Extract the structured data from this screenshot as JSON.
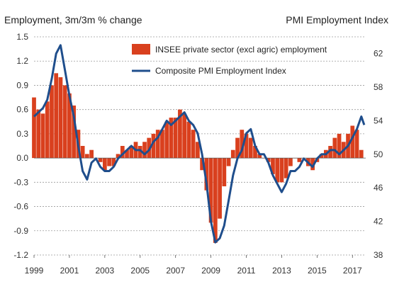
{
  "chart_data": {
    "type": "bar+line",
    "left_axis_title": "Employment, 3m/3m % change",
    "right_axis_title": "PMI Employment Index",
    "left_ylim": [
      -1.2,
      1.5
    ],
    "left_ticks": [
      "1.5",
      "1.2",
      "0.9",
      "0.6",
      "0.3",
      "0.0",
      "-0.3",
      "-0.6",
      "-0.9",
      "-1.2"
    ],
    "right_ylim": [
      38,
      64
    ],
    "right_ticks": [
      "62",
      "58",
      "54",
      "50",
      "46",
      "42",
      "38"
    ],
    "x_ticks": [
      "1999",
      "2001",
      "2003",
      "2005",
      "2007",
      "2009",
      "2011",
      "2013",
      "2015",
      "2017"
    ],
    "grid": "horizontal dashed",
    "legend_placement": "top-center",
    "colors": {
      "bars": "#d9401e",
      "line": "#1f4e8c"
    },
    "series": [
      {
        "name": "INSEE private sector (excl agric) employment",
        "kind": "bar",
        "axis": "left",
        "points": [
          [
            "1999-01",
            0.75
          ],
          [
            "1999-04",
            0.6
          ],
          [
            "1999-07",
            0.55
          ],
          [
            "1999-10",
            0.7
          ],
          [
            "2000-01",
            0.9
          ],
          [
            "2000-04",
            1.05
          ],
          [
            "2000-07",
            1.0
          ],
          [
            "2000-10",
            0.9
          ],
          [
            "2001-01",
            0.8
          ],
          [
            "2001-04",
            0.65
          ],
          [
            "2001-07",
            0.35
          ],
          [
            "2001-10",
            0.15
          ],
          [
            "2002-01",
            0.05
          ],
          [
            "2002-04",
            0.1
          ],
          [
            "2002-07",
            0.0
          ],
          [
            "2002-10",
            -0.05
          ],
          [
            "2003-01",
            -0.15
          ],
          [
            "2003-04",
            -0.1
          ],
          [
            "2003-07",
            -0.1
          ],
          [
            "2003-10",
            0.05
          ],
          [
            "2004-01",
            0.15
          ],
          [
            "2004-04",
            0.1
          ],
          [
            "2004-07",
            0.15
          ],
          [
            "2004-10",
            0.2
          ],
          [
            "2005-01",
            0.15
          ],
          [
            "2005-04",
            0.2
          ],
          [
            "2005-07",
            0.25
          ],
          [
            "2005-10",
            0.3
          ],
          [
            "2006-01",
            0.35
          ],
          [
            "2006-04",
            0.35
          ],
          [
            "2006-07",
            0.45
          ],
          [
            "2006-10",
            0.5
          ],
          [
            "2007-01",
            0.5
          ],
          [
            "2007-04",
            0.6
          ],
          [
            "2007-07",
            0.55
          ],
          [
            "2007-10",
            0.45
          ],
          [
            "2008-01",
            0.35
          ],
          [
            "2008-04",
            0.2
          ],
          [
            "2008-07",
            -0.15
          ],
          [
            "2008-10",
            -0.4
          ],
          [
            "2009-01",
            -0.8
          ],
          [
            "2009-04",
            -1.05
          ],
          [
            "2009-07",
            -0.75
          ],
          [
            "2009-10",
            -0.35
          ],
          [
            "2010-01",
            -0.1
          ],
          [
            "2010-04",
            0.1
          ],
          [
            "2010-07",
            0.25
          ],
          [
            "2010-10",
            0.35
          ],
          [
            "2011-01",
            0.3
          ],
          [
            "2011-04",
            0.25
          ],
          [
            "2011-07",
            0.15
          ],
          [
            "2011-10",
            0.05
          ],
          [
            "2012-01",
            0.0
          ],
          [
            "2012-04",
            -0.05
          ],
          [
            "2012-07",
            -0.2
          ],
          [
            "2012-10",
            -0.3
          ],
          [
            "2013-01",
            -0.3
          ],
          [
            "2013-04",
            -0.25
          ],
          [
            "2013-07",
            -0.1
          ],
          [
            "2013-10",
            0.0
          ],
          [
            "2014-01",
            -0.05
          ],
          [
            "2014-04",
            0.0
          ],
          [
            "2014-07",
            -0.1
          ],
          [
            "2014-10",
            -0.15
          ],
          [
            "2015-01",
            -0.05
          ],
          [
            "2015-04",
            0.05
          ],
          [
            "2015-07",
            0.1
          ],
          [
            "2015-10",
            0.15
          ],
          [
            "2016-01",
            0.25
          ],
          [
            "2016-04",
            0.3
          ],
          [
            "2016-07",
            0.2
          ],
          [
            "2016-10",
            0.3
          ],
          [
            "2017-01",
            0.4
          ],
          [
            "2017-04",
            0.35
          ],
          [
            "2017-07",
            0.1
          ]
        ]
      },
      {
        "name": "Composite PMI Employment Index",
        "kind": "line",
        "axis": "right",
        "points": [
          [
            "1999-01",
            54.5
          ],
          [
            "1999-04",
            55
          ],
          [
            "1999-07",
            55.5
          ],
          [
            "1999-10",
            56.5
          ],
          [
            "2000-01",
            59
          ],
          [
            "2000-04",
            62
          ],
          [
            "2000-07",
            63
          ],
          [
            "2000-10",
            60
          ],
          [
            "2001-01",
            57
          ],
          [
            "2001-04",
            54.5
          ],
          [
            "2001-07",
            51
          ],
          [
            "2001-10",
            48
          ],
          [
            "2002-01",
            47
          ],
          [
            "2002-04",
            49
          ],
          [
            "2002-07",
            49.5
          ],
          [
            "2002-10",
            48.5
          ],
          [
            "2003-01",
            48
          ],
          [
            "2003-04",
            48
          ],
          [
            "2003-07",
            48.5
          ],
          [
            "2003-10",
            49.5
          ],
          [
            "2004-01",
            50
          ],
          [
            "2004-04",
            50.5
          ],
          [
            "2004-07",
            51
          ],
          [
            "2004-10",
            50.5
          ],
          [
            "2005-01",
            50.5
          ],
          [
            "2005-04",
            50
          ],
          [
            "2005-07",
            50.5
          ],
          [
            "2005-10",
            51.5
          ],
          [
            "2006-01",
            52
          ],
          [
            "2006-04",
            53
          ],
          [
            "2006-07",
            54
          ],
          [
            "2006-10",
            53.5
          ],
          [
            "2007-01",
            54
          ],
          [
            "2007-04",
            54.5
          ],
          [
            "2007-07",
            55
          ],
          [
            "2007-10",
            54
          ],
          [
            "2008-01",
            53.5
          ],
          [
            "2008-04",
            52.5
          ],
          [
            "2008-07",
            50
          ],
          [
            "2008-10",
            46.5
          ],
          [
            "2009-01",
            42
          ],
          [
            "2009-04",
            39.5
          ],
          [
            "2009-07",
            40
          ],
          [
            "2009-10",
            41.5
          ],
          [
            "2010-01",
            44.5
          ],
          [
            "2010-04",
            47.5
          ],
          [
            "2010-07",
            49.5
          ],
          [
            "2010-10",
            50.5
          ],
          [
            "2011-01",
            52.5
          ],
          [
            "2011-04",
            53
          ],
          [
            "2011-07",
            51
          ],
          [
            "2011-10",
            50
          ],
          [
            "2012-01",
            50
          ],
          [
            "2012-04",
            49
          ],
          [
            "2012-07",
            47.5
          ],
          [
            "2012-10",
            46.5
          ],
          [
            "2013-01",
            45.5
          ],
          [
            "2013-04",
            46.5
          ],
          [
            "2013-07",
            48
          ],
          [
            "2013-10",
            48
          ],
          [
            "2014-01",
            48.5
          ],
          [
            "2014-04",
            49.5
          ],
          [
            "2014-07",
            49
          ],
          [
            "2014-10",
            48.5
          ],
          [
            "2015-01",
            49.5
          ],
          [
            "2015-04",
            50
          ],
          [
            "2015-07",
            50
          ],
          [
            "2015-10",
            50.5
          ],
          [
            "2016-01",
            50.5
          ],
          [
            "2016-04",
            50
          ],
          [
            "2016-07",
            50.5
          ],
          [
            "2016-10",
            51
          ],
          [
            "2017-01",
            52
          ],
          [
            "2017-04",
            53
          ],
          [
            "2017-07",
            54.5
          ],
          [
            "2017-09",
            53.5
          ]
        ]
      }
    ]
  }
}
